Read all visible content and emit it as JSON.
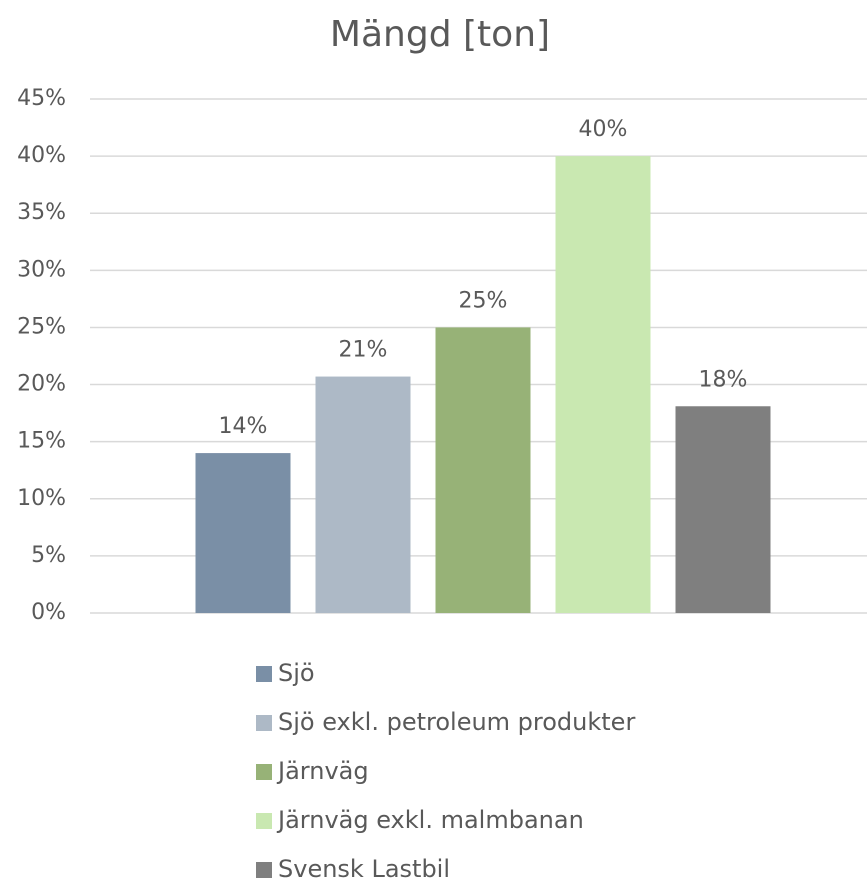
{
  "chart_data": {
    "type": "bar",
    "title": "Mängd [ton]",
    "categories": [
      null
    ],
    "series": [
      {
        "name": "Sjö",
        "color": "#7a8fa6",
        "values": [
          14
        ],
        "value_labels": [
          "14%"
        ]
      },
      {
        "name": "Sjö exkl. petroleum produkter",
        "color": "#adb9c6",
        "values": [
          20.7
        ],
        "value_labels": [
          "21%"
        ]
      },
      {
        "name": "Järnväg",
        "color": "#97b277",
        "values": [
          25
        ],
        "value_labels": [
          "25%"
        ]
      },
      {
        "name": "Järnväg exkl. malmbanan",
        "color": "#c9e8b1",
        "values": [
          40
        ],
        "value_labels": [
          "40%"
        ]
      },
      {
        "name": "Svensk Lastbil",
        "color": "#7f7f7f",
        "values": [
          18.1
        ],
        "value_labels": [
          "18%"
        ]
      }
    ],
    "ylim": [
      0,
      45
    ],
    "yticks": [
      {
        "value": 0,
        "label": "0%"
      },
      {
        "value": 5,
        "label": "5%"
      },
      {
        "value": 10,
        "label": "10%"
      },
      {
        "value": 15,
        "label": "15%"
      },
      {
        "value": 20,
        "label": "20%"
      },
      {
        "value": 25,
        "label": "25%"
      },
      {
        "value": 30,
        "label": "30%"
      },
      {
        "value": 35,
        "label": "35%"
      },
      {
        "value": 40,
        "label": "40%"
      },
      {
        "value": 45,
        "label": "45%"
      }
    ],
    "grid": true,
    "legend": "bottom"
  }
}
